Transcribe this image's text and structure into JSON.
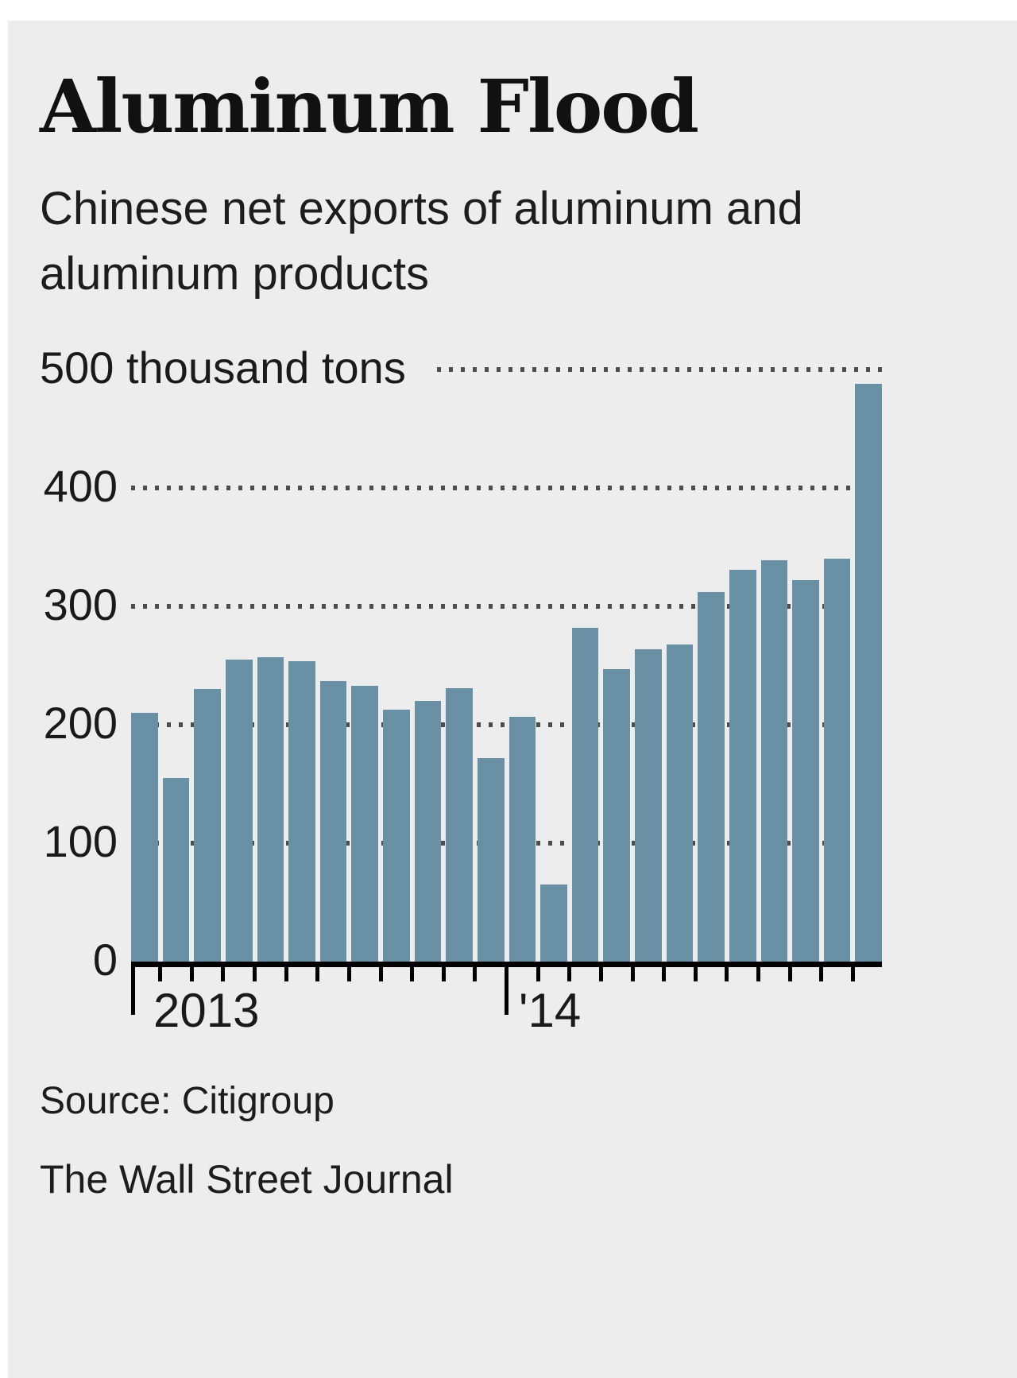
{
  "title": "Aluminum Flood",
  "subtitle": "Chinese net exports of aluminum and aluminum products",
  "source": "Source: Citigroup",
  "credit": "The Wall Street Journal",
  "colors": {
    "bar": "#6a90a6",
    "background": "#ededed",
    "text": "#1a1a1a",
    "grid_dots": "#4d4d4d"
  },
  "chart_data": {
    "type": "bar",
    "title": "Aluminum Flood",
    "subtitle": "Chinese net exports of aluminum and aluminum products",
    "unit": "thousand tons",
    "y_top_label": "500 thousand tons",
    "ylim": [
      0,
      500
    ],
    "y_ticks": [
      0,
      100,
      200,
      300,
      400,
      500
    ],
    "grid": "dotted horizontal gridlines",
    "legend": "none",
    "x_group_labels": [
      "2013",
      "'14"
    ],
    "cadence": "monthly",
    "year_break_index": 12,
    "values": [
      210,
      155,
      230,
      255,
      257,
      254,
      237,
      233,
      213,
      220,
      231,
      172,
      207,
      65,
      282,
      247,
      264,
      268,
      312,
      331,
      339,
      322,
      340,
      488
    ]
  }
}
